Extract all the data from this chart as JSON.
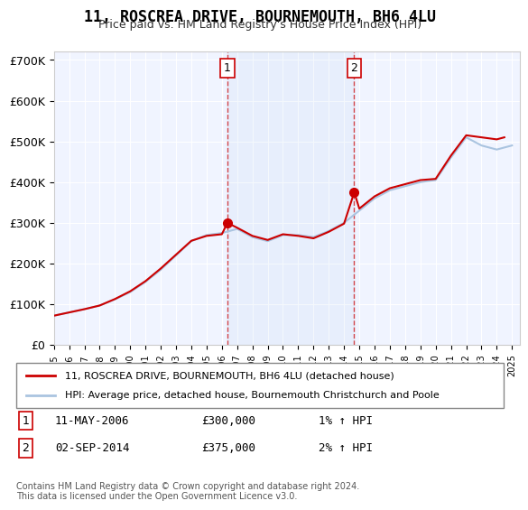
{
  "title": "11, ROSCREA DRIVE, BOURNEMOUTH, BH6 4LU",
  "subtitle": "Price paid vs. HM Land Registry's House Price Index (HPI)",
  "ylabel_ticks": [
    "£0",
    "£100K",
    "£200K",
    "£300K",
    "£400K",
    "£500K",
    "£600K",
    "£700K"
  ],
  "ylim": [
    0,
    720000
  ],
  "xlim_start": 1995.0,
  "xlim_end": 2025.5,
  "background_color": "#ffffff",
  "plot_bg_color": "#f0f4ff",
  "grid_color": "#ffffff",
  "hpi_color": "#aac4e0",
  "price_color": "#cc0000",
  "sale1_x": 2006.36,
  "sale1_y": 300000,
  "sale2_x": 2014.67,
  "sale2_y": 375000,
  "legend_line1": "11, ROSCREA DRIVE, BOURNEMOUTH, BH6 4LU (detached house)",
  "legend_line2": "HPI: Average price, detached house, Bournemouth Christchurch and Poole",
  "annotation1_label": "1",
  "annotation1_date": "11-MAY-2006",
  "annotation1_price": "£300,000",
  "annotation1_hpi": "1% ↑ HPI",
  "annotation2_label": "2",
  "annotation2_date": "02-SEP-2014",
  "annotation2_price": "£375,000",
  "annotation2_hpi": "2% ↑ HPI",
  "footnote": "Contains HM Land Registry data © Crown copyright and database right 2024.\nThis data is licensed under the Open Government Licence v3.0."
}
